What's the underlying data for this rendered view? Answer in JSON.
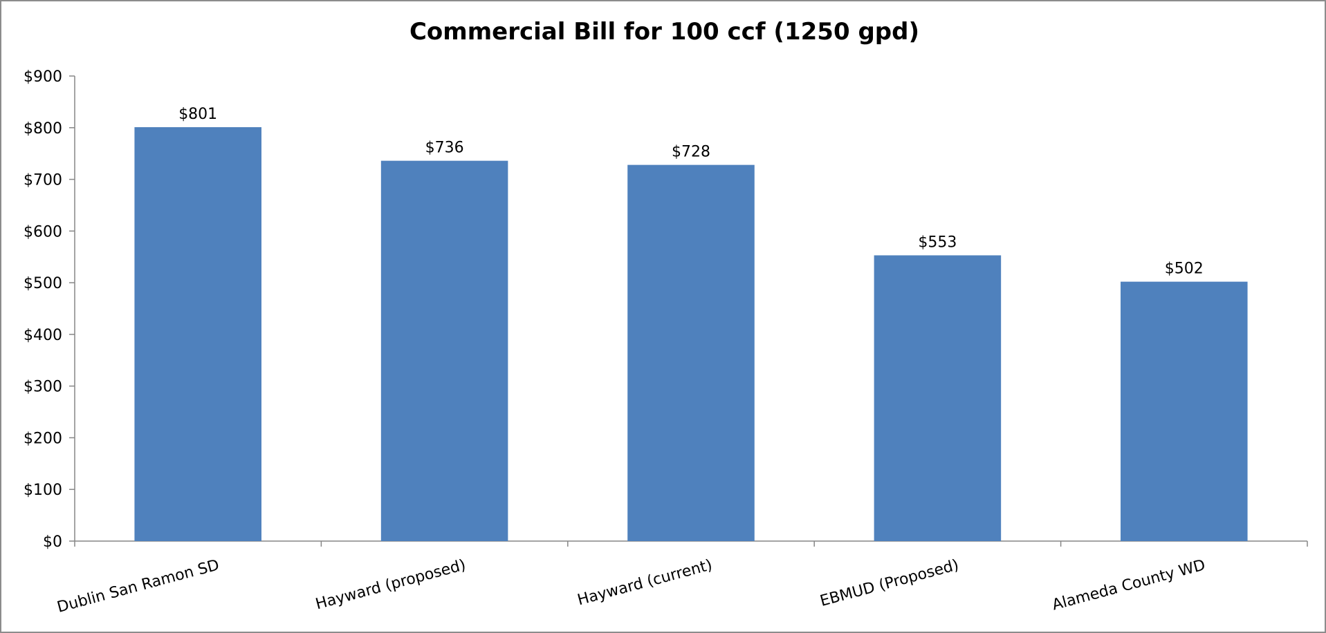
{
  "chart_data": {
    "type": "bar",
    "title": "Commercial Bill for 100 ccf (1250 gpd)",
    "xlabel": "",
    "ylabel": "",
    "categories": [
      "Dublin San Ramon SD",
      "Hayward (proposed)",
      "Hayward (current)",
      "EBMUD (Proposed)",
      "Alameda County WD"
    ],
    "values": [
      801,
      736,
      728,
      553,
      502
    ],
    "data_labels": [
      "$801",
      "$736",
      "$728",
      "$553",
      "$502"
    ],
    "ylim": [
      0,
      900
    ],
    "y_ticks": [
      0,
      100,
      200,
      300,
      400,
      500,
      600,
      700,
      800,
      900
    ],
    "y_tick_labels": [
      "$0",
      "$100",
      "$200",
      "$300",
      "$400",
      "$500",
      "$600",
      "$700",
      "$800",
      "$900"
    ],
    "grid": false,
    "legend": "none",
    "bar_color": "#4f81bd",
    "axis_color": "#868686"
  }
}
